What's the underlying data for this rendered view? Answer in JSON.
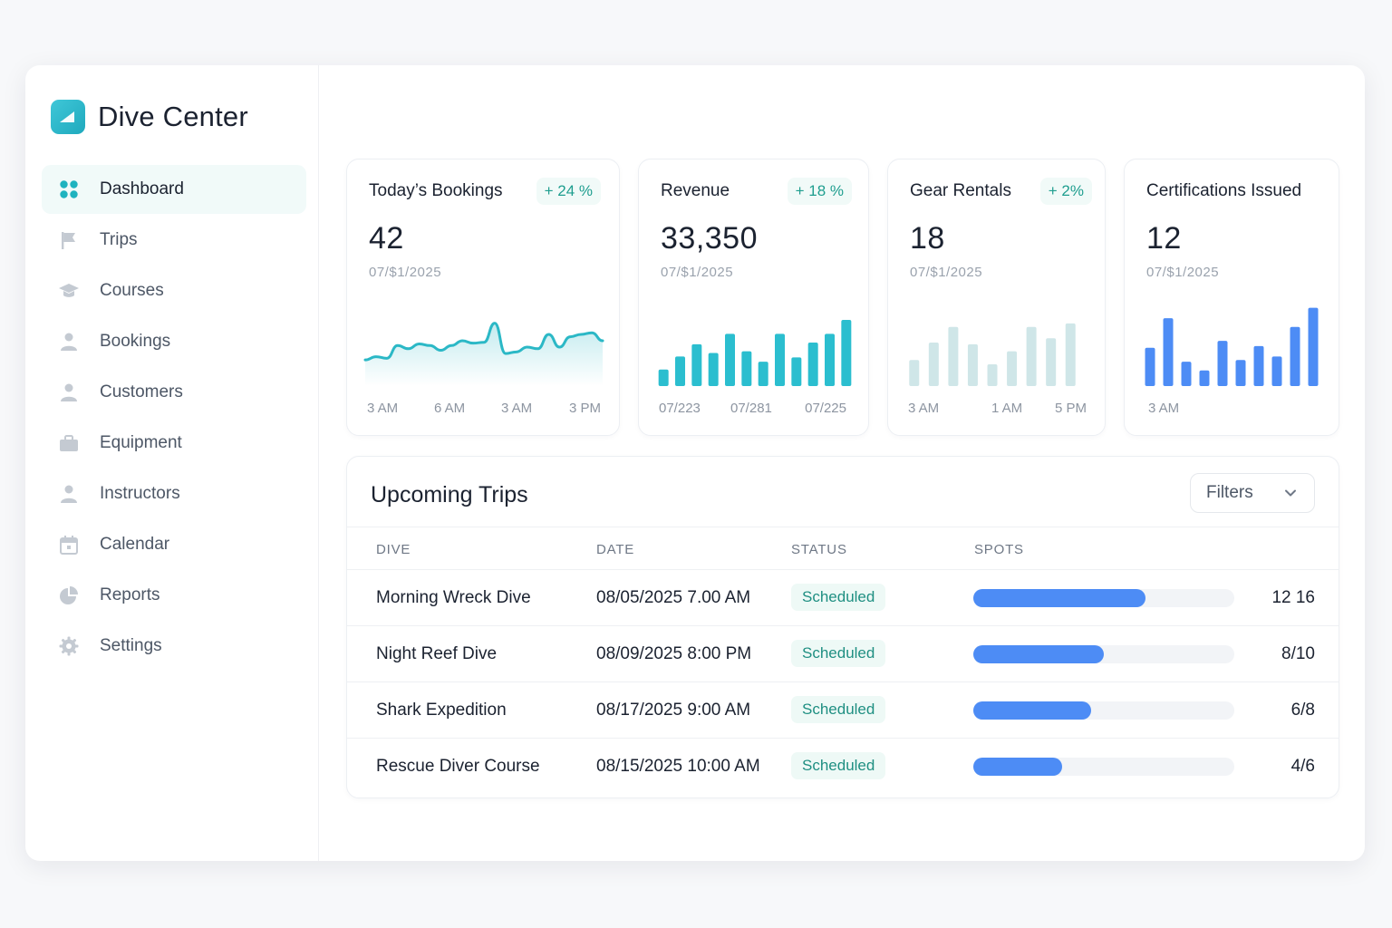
{
  "brand": {
    "name": "Dive Center"
  },
  "nav": [
    {
      "label": "Dashboard",
      "icon": "grid-icon",
      "active": true
    },
    {
      "label": "Trips",
      "icon": "flag-icon"
    },
    {
      "label": "Courses",
      "icon": "graduation-cap-icon"
    },
    {
      "label": "Bookings",
      "icon": "person-icon"
    },
    {
      "label": "Customers",
      "icon": "person-icon"
    },
    {
      "label": "Equipment",
      "icon": "toolbox-icon"
    },
    {
      "label": "Instructors",
      "icon": "person-icon"
    },
    {
      "label": "Calendar",
      "icon": "calendar-icon"
    },
    {
      "label": "Reports",
      "icon": "pie-chart-icon"
    },
    {
      "label": "Settings",
      "icon": "gear-icon"
    }
  ],
  "kpis": [
    {
      "title": "Today’s Bookings",
      "badge": "+ 24 %",
      "value": "42",
      "date": "07/$1/2025",
      "chart_type": "area",
      "color": "#2bb8c6",
      "ticks": [
        "3 AM",
        "6 AM",
        "3 AM",
        "3 PM"
      ]
    },
    {
      "title": "Revenue",
      "badge": "+ 18 %",
      "value": "33,350",
      "date": "07/$1/2025",
      "chart_type": "bar",
      "color": "#2bbecf",
      "ticks": [
        "07/223",
        "07/281",
        "07/225"
      ]
    },
    {
      "title": "Gear Rentals",
      "badge": "+ 2%",
      "value": "18",
      "date": "07/$1/2025",
      "chart_type": "bar",
      "color": "#cfe6e8",
      "ticks": [
        "3 AM",
        "1 AM",
        "5 PM"
      ]
    },
    {
      "title": "Certifications Issued",
      "badge": "",
      "value": "12",
      "date": "07/$1/2025",
      "chart_type": "bar",
      "color": "#4d8cf5",
      "ticks": [
        "3 AM"
      ]
    }
  ],
  "chart_data": [
    {
      "type": "area",
      "series": [
        {
          "values": [
            26,
            30,
            28,
            44,
            40,
            46,
            44,
            38,
            44,
            50,
            47,
            48,
            72,
            34,
            36,
            42,
            40,
            58,
            42,
            55,
            58,
            60,
            50
          ]
        }
      ]
    },
    {
      "type": "bar",
      "series": [
        {
          "values": [
            19,
            34,
            48,
            38,
            60,
            40,
            28,
            60,
            33,
            50,
            60,
            76
          ]
        }
      ]
    },
    {
      "type": "bar",
      "series": [
        {
          "values": [
            30,
            50,
            68,
            48,
            25,
            40,
            68,
            55,
            72
          ]
        }
      ]
    },
    {
      "type": "bar",
      "series": [
        {
          "values": [
            44,
            78,
            28,
            18,
            52,
            30,
            46,
            34,
            68,
            90
          ]
        }
      ]
    }
  ],
  "trips": {
    "title": "Upcoming Trips",
    "filters_label": "Filters",
    "columns": [
      "DIVE",
      "DATE",
      "STATUS",
      "SPOTS"
    ],
    "rows": [
      {
        "name": "Morning Wreck Dive",
        "date": "08/05/2025 7.00 AM",
        "status": "Scheduled",
        "spots": "12 16",
        "fill": 0.66
      },
      {
        "name": "Night Reef Dive",
        "date": "08/09/2025 8:00 PM",
        "status": "Scheduled",
        "spots": "8/10",
        "fill": 0.5
      },
      {
        "name": "Shark Expedition",
        "date": "08/17/2025 9:00 AM",
        "status": "Scheduled",
        "spots": "6/8",
        "fill": 0.45
      },
      {
        "name": "Rescue Diver Course",
        "date": "08/15/2025 10:00 AM",
        "status": "Scheduled",
        "spots": "4/6",
        "fill": 0.34
      }
    ]
  }
}
